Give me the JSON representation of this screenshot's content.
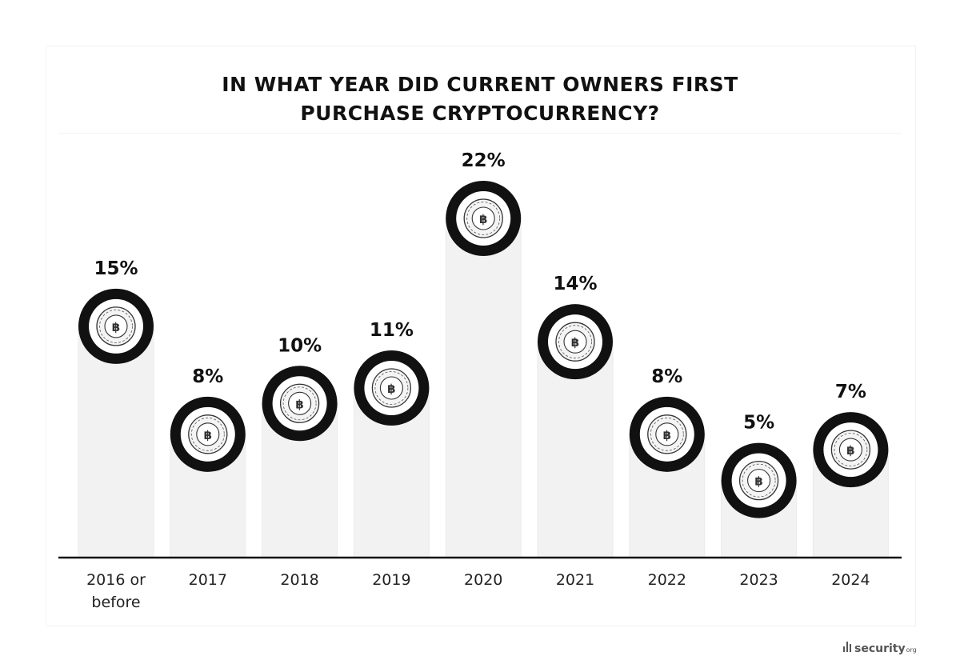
{
  "title_lines": [
    "IN WHAT YEAR DID CURRENT OWNERS FIRST",
    "PURCHASE CRYPTOCURRENCY?"
  ],
  "logo_text": "security",
  "logo_suffix": "org",
  "chart_data": {
    "type": "bar",
    "title": "IN WHAT YEAR DID CURRENT OWNERS FIRST PURCHASE CRYPTOCURRENCY?",
    "categories": [
      [
        "2016 or",
        "before"
      ],
      [
        "2017"
      ],
      [
        "2018"
      ],
      [
        "2019"
      ],
      [
        "2020"
      ],
      [
        "2021"
      ],
      [
        "2022"
      ],
      [
        "2023"
      ],
      [
        "2024"
      ]
    ],
    "values": [
      15,
      8,
      10,
      11,
      22,
      14,
      8,
      5,
      7
    ],
    "value_labels": [
      "15%",
      "8%",
      "10%",
      "11%",
      "22%",
      "14%",
      "8%",
      "5%",
      "7%"
    ],
    "ylim": [
      0,
      22
    ],
    "grid": false,
    "marker_icon": "bitcoin-coin-icon",
    "colors": {
      "bar": "#f2f2f2",
      "bar_edge": "#ebebeb",
      "ring": "#111111",
      "text": "#111111",
      "baseline": "#111111"
    }
  }
}
